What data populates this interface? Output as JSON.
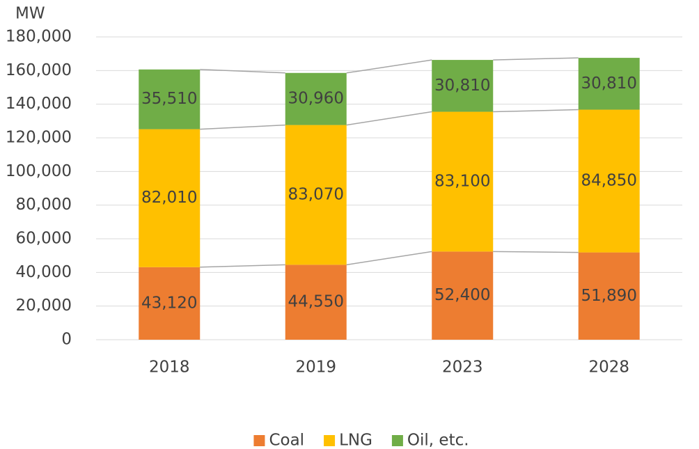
{
  "chart_data": {
    "type": "stacked_bar",
    "y_axis_label": "MW",
    "categories": [
      "2018",
      "2019",
      "2023",
      "2028"
    ],
    "series": [
      {
        "name": "Coal",
        "color": "#ed7d31",
        "values": [
          43120,
          44550,
          52400,
          51890
        ],
        "value_labels": [
          "43,120",
          "44,550",
          "52,400",
          "51,890"
        ]
      },
      {
        "name": "LNG",
        "color": "#ffc000",
        "values": [
          82010,
          83070,
          83100,
          84850
        ],
        "value_labels": [
          "82,010",
          "83,070",
          "83,100",
          "84,850"
        ]
      },
      {
        "name": "Oil, etc.",
        "color": "#70ad47",
        "values": [
          35510,
          30960,
          30810,
          30810
        ],
        "value_labels": [
          "35,510",
          "30,960",
          "30,810",
          "30,810"
        ]
      }
    ],
    "ylim": [
      0,
      180000
    ],
    "yticks": [
      0,
      {
        "value": 20000,
        "label": "20,000"
      },
      {
        "value": 40000,
        "label": "40,000"
      },
      {
        "value": 60000,
        "label": "60,000"
      },
      {
        "value": 80000,
        "label": "80,000"
      },
      {
        "value": 100000,
        "label": "100,000"
      },
      {
        "value": 120000,
        "label": "120,000"
      },
      {
        "value": 140000,
        "label": "140,000"
      },
      {
        "value": 160000,
        "label": "160,000"
      },
      {
        "value": 180000,
        "label": "180,000"
      }
    ],
    "grid": true,
    "series_lines": true,
    "legend": "bottom"
  }
}
